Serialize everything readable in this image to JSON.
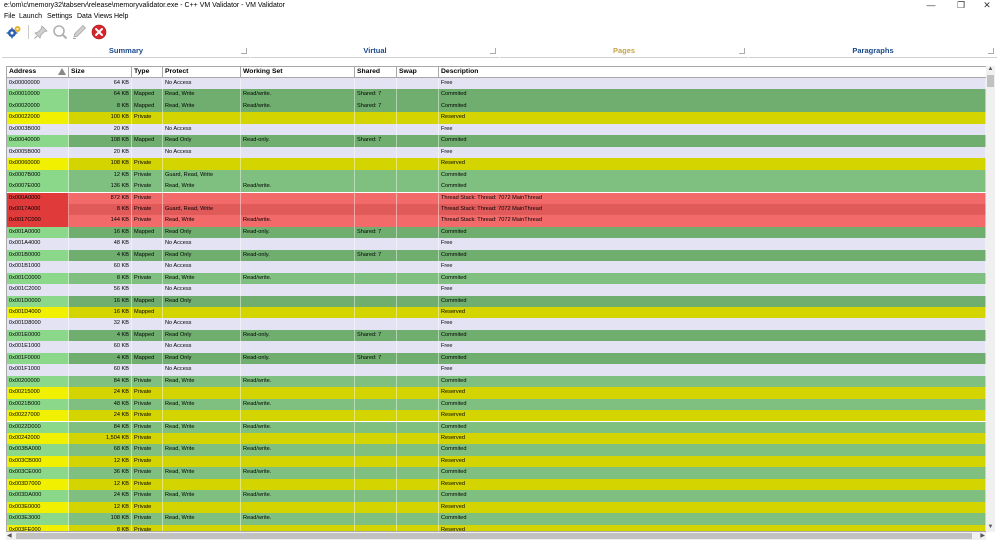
{
  "window": {
    "title": "e:\\om\\c\\memory32\\tabserv\\release\\memoryvalidator.exe - C++ VM Validator - VM Validator",
    "controls": {
      "minimize": "—",
      "restore": "❐",
      "close": "✕"
    }
  },
  "menu": [
    "File",
    "Launch",
    "Settings",
    "Data Views",
    "Help"
  ],
  "toolbar": {
    "icons": [
      "gears-settings-icon",
      "pin-icon",
      "magnifier-icon",
      "edit-icon",
      "stop-icon"
    ],
    "colors": {
      "stop": "#d8242b",
      "gears": "#2a5db0"
    }
  },
  "tabs": [
    {
      "label": "Summary",
      "active": false
    },
    {
      "label": "Virtual",
      "active": false
    },
    {
      "label": "Pages",
      "active": true
    },
    {
      "label": "Paragraphs",
      "active": false
    }
  ],
  "grid": {
    "columns": [
      "Address",
      "Size",
      "Type",
      "Protect",
      "Working Set",
      "Shared",
      "Swap",
      "Description"
    ],
    "sort_column": "Address",
    "colors": {
      "Free": "#e3e3f3",
      "Commited": "#7fbf7f",
      "Commited_alt": "#6fae6f",
      "Reserved": "#d4d400",
      "Thread": "#f26a6a",
      "Thread_dark": "#e05a5a",
      "addr_free": "#e3e3f3",
      "addr_commited": "#8bd88b",
      "addr_reserved": "#f0f000",
      "addr_thread": "#e03a3a"
    },
    "rows": [
      [
        "0x00000000",
        "64 KB",
        "",
        "No Access",
        "",
        "",
        "",
        "Free"
      ],
      [
        "0x00010000",
        "64 KB",
        "Mapped",
        "Read, Write",
        "Read/write.",
        "Shared: 7",
        "",
        "Commited"
      ],
      [
        "0x00020000",
        "8 KB",
        "Mapped",
        "Read, Write",
        "Read/write.",
        "Shared: 7",
        "",
        "Commited"
      ],
      [
        "0x00022000",
        "100 KB",
        "Private",
        "",
        "",
        "",
        "",
        "Reserved"
      ],
      [
        "0x0003B000",
        "20 KB",
        "",
        "No Access",
        "",
        "",
        "",
        "Free"
      ],
      [
        "0x00040000",
        "108 KB",
        "Mapped",
        "Read Only",
        "Read-only.",
        "Shared: 7",
        "",
        "Commited"
      ],
      [
        "0x0005B000",
        "20 KB",
        "",
        "No Access",
        "",
        "",
        "",
        "Free"
      ],
      [
        "0x00060000",
        "108 KB",
        "Private",
        "",
        "",
        "",
        "",
        "Reserved"
      ],
      [
        "0x0007B000",
        "12 KB",
        "Private",
        "Guard, Read, Write",
        "",
        "",
        "",
        "Commited"
      ],
      [
        "0x0007E000",
        "136 KB",
        "Private",
        "Read, Write",
        "Read/write.",
        "",
        "",
        "Commited"
      ],
      [
        "0x000A0000",
        "872 KB",
        "Private",
        "",
        "",
        "",
        "",
        "Thread Stack: Thread: 7072 MainThread"
      ],
      [
        "0x0017A000",
        "8 KB",
        "Private",
        "Guard, Read, Write",
        "",
        "",
        "",
        "Thread Stack: Thread: 7072 MainThread"
      ],
      [
        "0x0017C000",
        "144 KB",
        "Private",
        "Read, Write",
        "Read/write.",
        "",
        "",
        "Thread Stack: Thread: 7072 MainThread"
      ],
      [
        "0x001A0000",
        "16 KB",
        "Mapped",
        "Read Only",
        "Read-only.",
        "Shared: 7",
        "",
        "Commited"
      ],
      [
        "0x001A4000",
        "48 KB",
        "",
        "No Access",
        "",
        "",
        "",
        "Free"
      ],
      [
        "0x001B0000",
        "4 KB",
        "Mapped",
        "Read Only",
        "Read-only.",
        "Shared: 7",
        "",
        "Commited"
      ],
      [
        "0x001B1000",
        "60 KB",
        "",
        "No Access",
        "",
        "",
        "",
        "Free"
      ],
      [
        "0x001C0000",
        "8 KB",
        "Private",
        "Read, Write",
        "Read/write.",
        "",
        "",
        "Commited"
      ],
      [
        "0x001C2000",
        "56 KB",
        "",
        "No Access",
        "",
        "",
        "",
        "Free"
      ],
      [
        "0x001D0000",
        "16 KB",
        "Mapped",
        "Read Only",
        "",
        "",
        "",
        "Commited"
      ],
      [
        "0x001D4000",
        "16 KB",
        "Mapped",
        "",
        "",
        "",
        "",
        "Reserved"
      ],
      [
        "0x001D8000",
        "32 KB",
        "",
        "No Access",
        "",
        "",
        "",
        "Free"
      ],
      [
        "0x001E0000",
        "4 KB",
        "Mapped",
        "Read Only",
        "Read-only.",
        "Shared: 7",
        "",
        "Commited"
      ],
      [
        "0x001E1000",
        "60 KB",
        "",
        "No Access",
        "",
        "",
        "",
        "Free"
      ],
      [
        "0x001F0000",
        "4 KB",
        "Mapped",
        "Read Only",
        "Read-only.",
        "Shared: 7",
        "",
        "Commited"
      ],
      [
        "0x001F1000",
        "60 KB",
        "",
        "No Access",
        "",
        "",
        "",
        "Free"
      ],
      [
        "0x00200000",
        "84 KB",
        "Private",
        "Read, Write",
        "Read/write.",
        "",
        "",
        "Commited"
      ],
      [
        "0x00215000",
        "24 KB",
        "Private",
        "",
        "",
        "",
        "",
        "Reserved"
      ],
      [
        "0x0021B000",
        "48 KB",
        "Private",
        "Read, Write",
        "Read/write.",
        "",
        "",
        "Commited"
      ],
      [
        "0x00227000",
        "24 KB",
        "Private",
        "",
        "",
        "",
        "",
        "Reserved"
      ],
      [
        "0x0022D000",
        "84 KB",
        "Private",
        "Read, Write",
        "Read/write.",
        "",
        "",
        "Commited"
      ],
      [
        "0x00242000",
        "1,504 KB",
        "Private",
        "",
        "",
        "",
        "",
        "Reserved"
      ],
      [
        "0x003BA000",
        "68 KB",
        "Private",
        "Read, Write",
        "Read/write.",
        "",
        "",
        "Commited"
      ],
      [
        "0x003CB000",
        "12 KB",
        "Private",
        "",
        "",
        "",
        "",
        "Reserved"
      ],
      [
        "0x003CE000",
        "36 KB",
        "Private",
        "Read, Write",
        "Read/write.",
        "",
        "",
        "Commited"
      ],
      [
        "0x003D7000",
        "12 KB",
        "Private",
        "",
        "",
        "",
        "",
        "Reserved"
      ],
      [
        "0x003DA000",
        "24 KB",
        "Private",
        "Read, Write",
        "Read/write.",
        "",
        "",
        "Commited"
      ],
      [
        "0x003E0000",
        "12 KB",
        "Private",
        "",
        "",
        "",
        "",
        "Reserved"
      ],
      [
        "0x003E3000",
        "108 KB",
        "Private",
        "Read, Write",
        "Read/write.",
        "",
        "",
        "Commited"
      ],
      [
        "0x003FE000",
        "8 KB",
        "Private",
        "",
        "",
        "",
        "",
        "Reserved"
      ]
    ]
  }
}
